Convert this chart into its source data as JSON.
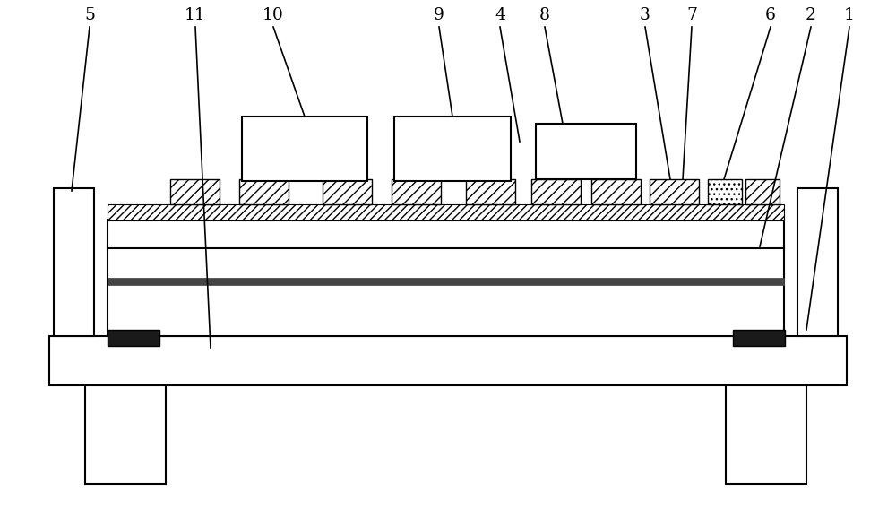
{
  "bg_color": "#ffffff",
  "line_color": "#000000",
  "dark_fill": "#1a1a1a",
  "gray_fill": "#888888",
  "fig_width": 10.0,
  "fig_height": 5.88,
  "lw": 1.5
}
